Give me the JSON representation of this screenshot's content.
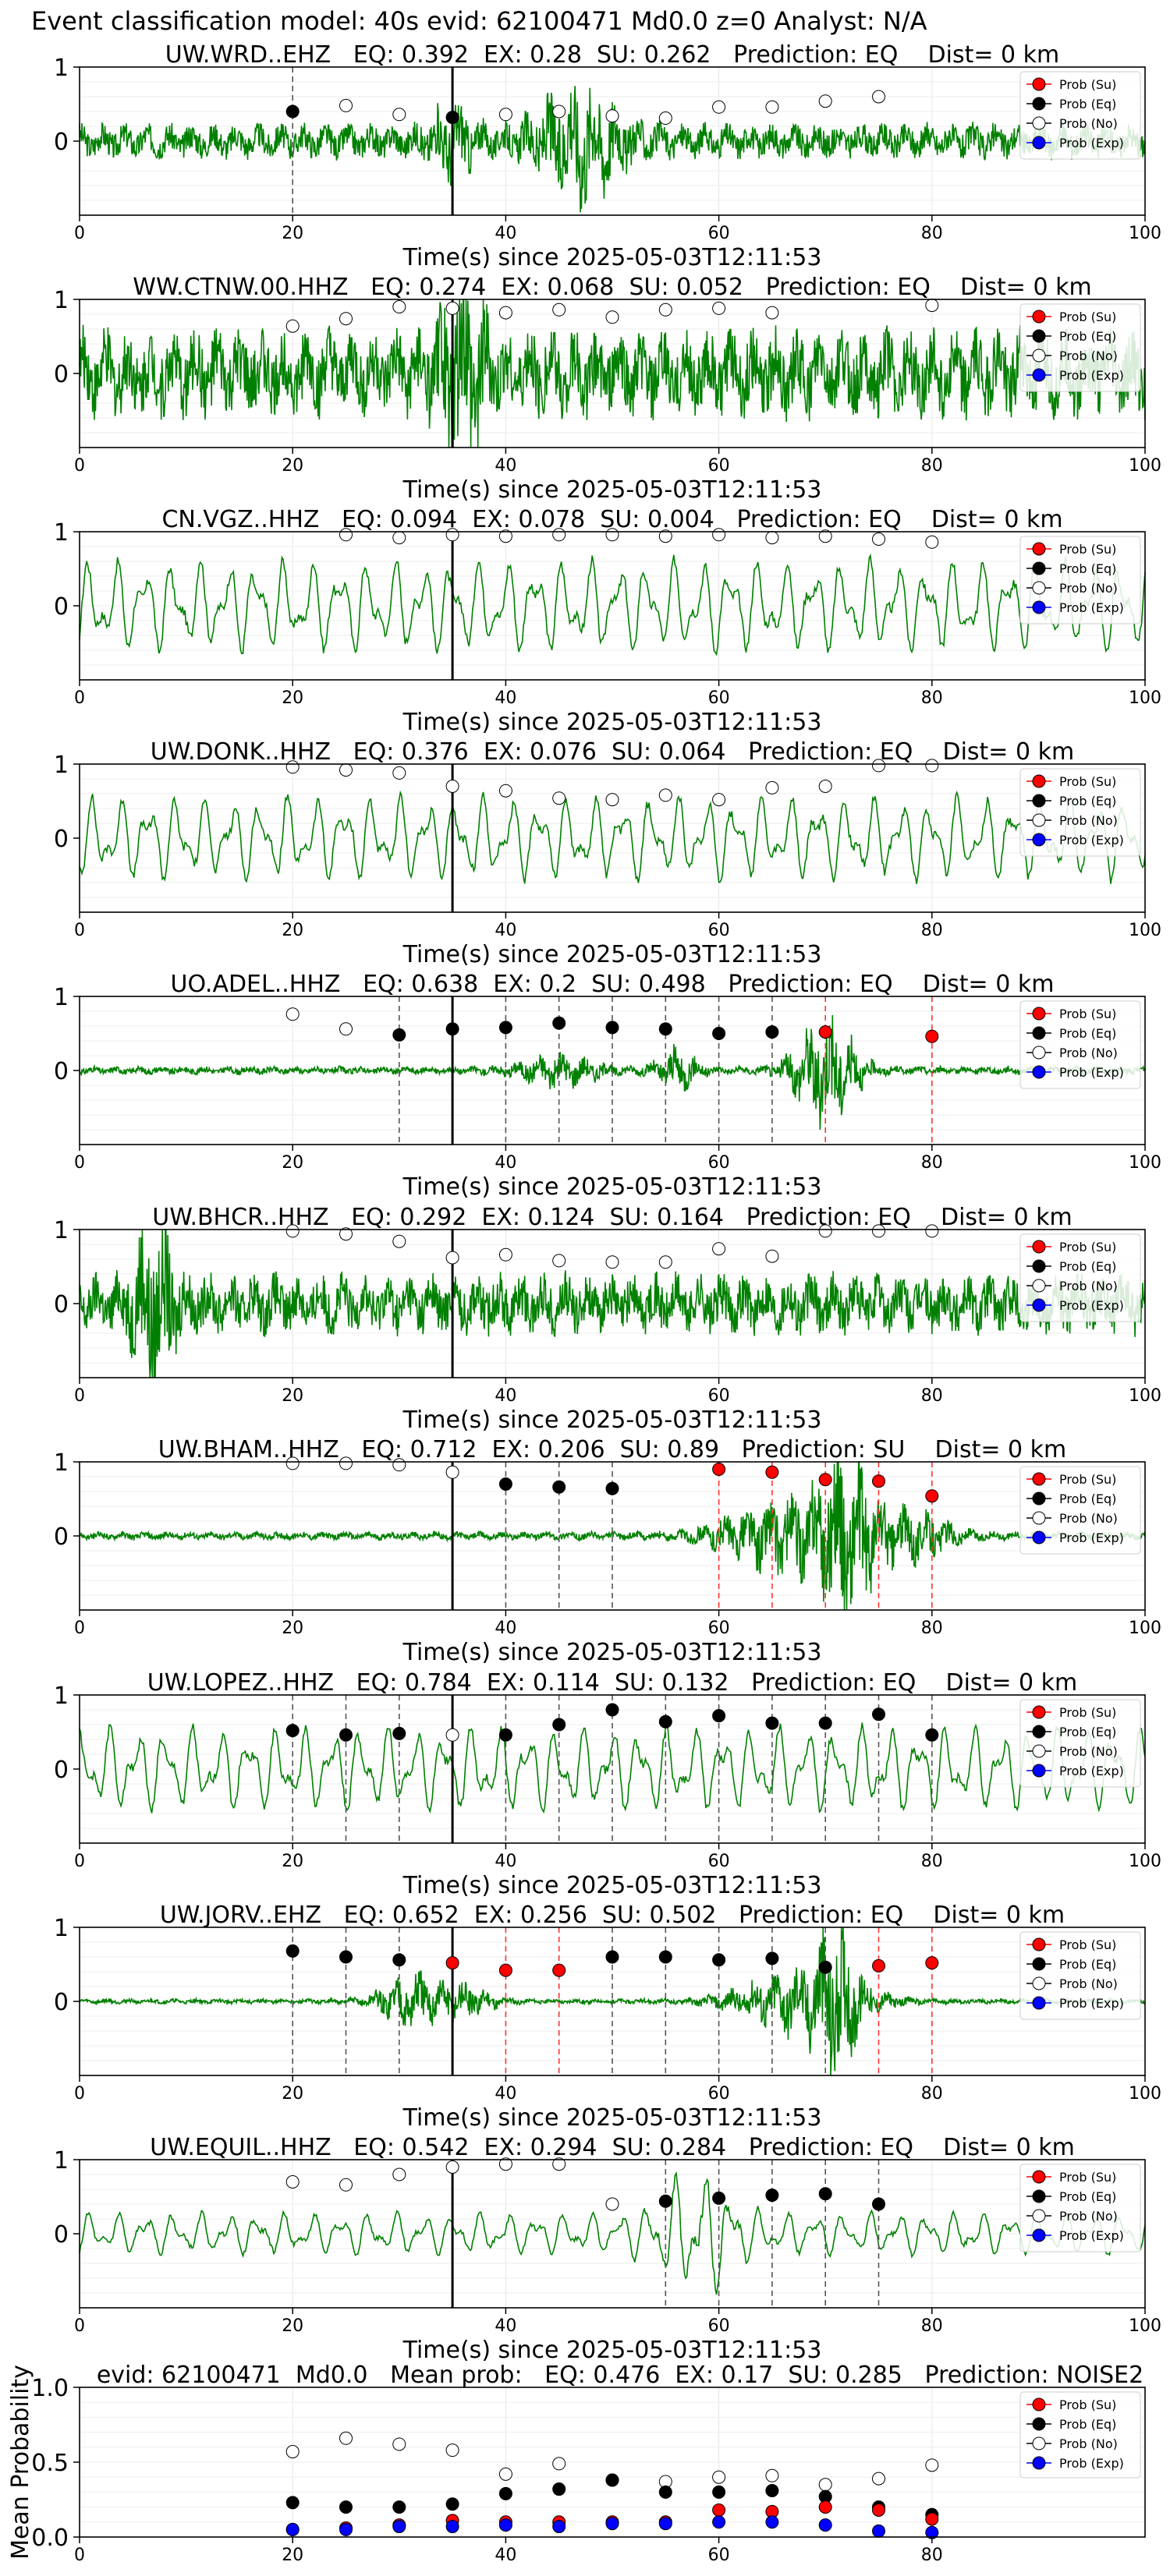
{
  "suptitle": "Event classification model: 40s evid: 62100471 Md0.0 z=0 Analyst: N/A",
  "colors": {
    "trace": "#008000",
    "su": "#ff0000",
    "eq": "#000000",
    "no": "#ffffff",
    "exp": "#0000ff",
    "pick_line": "#000000",
    "eq_window_line": "#555555",
    "su_window_line": "#ff3333"
  },
  "legend_labels": [
    "Prob (Su)",
    "Prob (Eq)",
    "Prob (No)",
    "Prob (Exp)"
  ],
  "chart_data": [
    {
      "type": "line",
      "title": "UW.WRD..EHZ   EQ: 0.392  EX: 0.28  SU: 0.262   Prediction: EQ    Dist= 0 km",
      "xlabel": "Time(s) since 2025-05-03T12:11:53",
      "ylabel": "",
      "xlim": [
        0,
        100
      ],
      "ylim": [
        -1,
        1
      ],
      "xticks": [
        0,
        20,
        40,
        60,
        80,
        100
      ],
      "yticks": [
        0,
        1
      ],
      "grid": true,
      "legend_position": "top-right",
      "pick_time": 35,
      "waveform": {
        "style": "noisy",
        "amplitude": 0.22,
        "bursts": [
          {
            "t": 47,
            "amp": 0.65,
            "w": 4
          },
          {
            "t": 35,
            "amp": 0.35,
            "w": 2
          }
        ]
      },
      "series": [
        {
          "name": "Prob (Eq)",
          "x": [
            20,
            35
          ],
          "values": [
            0.4,
            0.32
          ]
        },
        {
          "name": "Prob (No)",
          "x": [
            25,
            30,
            40,
            45,
            50,
            55,
            60,
            65,
            70,
            75
          ],
          "values": [
            0.48,
            0.36,
            0.36,
            0.4,
            0.34,
            0.31,
            0.46,
            0.46,
            0.54,
            0.6
          ]
        }
      ],
      "window_lines": {
        "eq": [
          20
        ],
        "su": []
      }
    },
    {
      "type": "line",
      "title": "WW.CTNW.00.HHZ   EQ: 0.274  EX: 0.068  SU: 0.052   Prediction: EQ    Dist= 0 km",
      "xlabel": "Time(s) since 2025-05-03T12:11:53",
      "ylabel": "",
      "xlim": [
        0,
        100
      ],
      "ylim": [
        -1,
        1
      ],
      "xticks": [
        0,
        20,
        40,
        60,
        80,
        100
      ],
      "yticks": [
        0,
        1
      ],
      "grid": true,
      "legend_position": "top-right",
      "pick_time": 35,
      "waveform": {
        "style": "noisy",
        "amplitude": 0.55,
        "bursts": [
          {
            "t": 36,
            "amp": 0.9,
            "w": 2
          }
        ]
      },
      "series": [
        {
          "name": "Prob (No)",
          "x": [
            20,
            25,
            30,
            35,
            40,
            45,
            50,
            55,
            60,
            65,
            80
          ],
          "values": [
            0.64,
            0.74,
            0.9,
            0.88,
            0.82,
            0.86,
            0.76,
            0.86,
            0.88,
            0.82,
            0.92
          ]
        }
      ],
      "window_lines": {
        "eq": [],
        "su": []
      }
    },
    {
      "type": "line",
      "title": "CN.VGZ..HHZ   EQ: 0.094  EX: 0.078  SU: 0.004   Prediction: EQ    Dist= 0 km",
      "xlabel": "Time(s) since 2025-05-03T12:11:53",
      "ylabel": "",
      "xlim": [
        0,
        100
      ],
      "ylim": [
        -1,
        1
      ],
      "xticks": [
        0,
        20,
        40,
        60,
        80,
        100
      ],
      "yticks": [
        0,
        1
      ],
      "grid": true,
      "legend_position": "top-right",
      "pick_time": 35,
      "waveform": {
        "style": "smooth",
        "amplitude": 0.55,
        "bursts": []
      },
      "series": [
        {
          "name": "Prob (No)",
          "x": [
            25,
            30,
            35,
            40,
            45,
            50,
            55,
            60,
            65,
            70,
            75,
            80
          ],
          "values": [
            0.96,
            0.92,
            0.96,
            0.94,
            0.96,
            0.96,
            0.94,
            0.96,
            0.92,
            0.94,
            0.9,
            0.86
          ]
        }
      ],
      "window_lines": {
        "eq": [],
        "su": []
      }
    },
    {
      "type": "line",
      "title": "UW.DONK..HHZ   EQ: 0.376  EX: 0.076  SU: 0.064   Prediction: EQ    Dist= 0 km",
      "xlabel": "Time(s) since 2025-05-03T12:11:53",
      "ylabel": "",
      "xlim": [
        0,
        100
      ],
      "ylim": [
        -1,
        1
      ],
      "xticks": [
        0,
        20,
        40,
        60,
        80,
        100
      ],
      "yticks": [
        0,
        1
      ],
      "grid": true,
      "legend_position": "top-right",
      "pick_time": 35,
      "waveform": {
        "style": "smooth",
        "amplitude": 0.5,
        "bursts": []
      },
      "series": [
        {
          "name": "Prob (No)",
          "x": [
            20,
            25,
            30,
            35,
            40,
            45,
            50,
            55,
            60,
            65,
            70,
            75,
            80
          ],
          "values": [
            0.96,
            0.92,
            0.88,
            0.7,
            0.64,
            0.54,
            0.52,
            0.58,
            0.52,
            0.68,
            0.7,
            0.98,
            0.98
          ]
        }
      ],
      "window_lines": {
        "eq": [],
        "su": []
      }
    },
    {
      "type": "line",
      "title": "UO.ADEL..HHZ   EQ: 0.638  EX: 0.2  SU: 0.498   Prediction: EQ    Dist= 0 km",
      "xlabel": "Time(s) since 2025-05-03T12:11:53",
      "ylabel": "",
      "xlim": [
        0,
        100
      ],
      "ylim": [
        -1,
        1
      ],
      "xticks": [
        0,
        20,
        40,
        60,
        80,
        100
      ],
      "yticks": [
        0,
        1
      ],
      "grid": true,
      "legend_position": "top-right",
      "pick_time": 35,
      "waveform": {
        "style": "noisy",
        "amplitude": 0.05,
        "bursts": [
          {
            "t": 45,
            "amp": 0.18,
            "w": 4
          },
          {
            "t": 56,
            "amp": 0.25,
            "w": 2
          },
          {
            "t": 70,
            "amp": 0.7,
            "w": 3
          }
        ]
      },
      "series": [
        {
          "name": "Prob (No)",
          "x": [
            20,
            25
          ],
          "values": [
            0.76,
            0.56
          ]
        },
        {
          "name": "Prob (Eq)",
          "x": [
            30,
            35,
            40,
            45,
            50,
            55,
            60,
            65
          ],
          "values": [
            0.48,
            0.56,
            0.58,
            0.64,
            0.58,
            0.56,
            0.5,
            0.52
          ]
        },
        {
          "name": "Prob (Su)",
          "x": [
            70,
            80
          ],
          "values": [
            0.52,
            0.46
          ]
        }
      ],
      "window_lines": {
        "eq": [
          30,
          40,
          45,
          50,
          55,
          60,
          65
        ],
        "su": [
          70,
          80
        ]
      }
    },
    {
      "type": "line",
      "title": "UW.BHCR..HHZ   EQ: 0.292  EX: 0.124  SU: 0.164   Prediction: EQ    Dist= 0 km",
      "xlabel": "Time(s) since 2025-05-03T12:11:53",
      "ylabel": "",
      "xlim": [
        0,
        100
      ],
      "ylim": [
        -1,
        1
      ],
      "xticks": [
        0,
        20,
        40,
        60,
        80,
        100
      ],
      "yticks": [
        0,
        1
      ],
      "grid": true,
      "legend_position": "top-right",
      "pick_time": 35,
      "waveform": {
        "style": "noisy",
        "amplitude": 0.38,
        "bursts": [
          {
            "t": 7,
            "amp": 0.9,
            "w": 2
          }
        ]
      },
      "series": [
        {
          "name": "Prob (No)",
          "x": [
            20,
            25,
            30,
            35,
            40,
            45,
            50,
            55,
            60,
            65,
            70,
            75,
            80
          ],
          "values": [
            0.98,
            0.94,
            0.84,
            0.62,
            0.66,
            0.58,
            0.56,
            0.56,
            0.74,
            0.64,
            0.98,
            0.98,
            0.98
          ]
        }
      ],
      "window_lines": {
        "eq": [],
        "su": []
      }
    },
    {
      "type": "line",
      "title": "UW.BHAM..HHZ   EQ: 0.712  EX: 0.206  SU: 0.89   Prediction: SU    Dist= 0 km",
      "xlabel": "Time(s) since 2025-05-03T12:11:53",
      "ylabel": "",
      "xlim": [
        0,
        100
      ],
      "ylim": [
        -1,
        1
      ],
      "xticks": [
        0,
        20,
        40,
        60,
        80,
        100
      ],
      "yticks": [
        0,
        1
      ],
      "grid": true,
      "legend_position": "top-right",
      "pick_time": 35,
      "waveform": {
        "style": "noisy",
        "amplitude": 0.05,
        "bursts": [
          {
            "t": 66,
            "amp": 0.45,
            "w": 6
          },
          {
            "t": 72,
            "amp": 0.8,
            "w": 3
          },
          {
            "t": 78,
            "amp": 0.3,
            "w": 4
          }
        ]
      },
      "series": [
        {
          "name": "Prob (No)",
          "x": [
            20,
            25,
            30,
            35
          ],
          "values": [
            0.98,
            0.98,
            0.96,
            0.86
          ]
        },
        {
          "name": "Prob (Eq)",
          "x": [
            40,
            45,
            50
          ],
          "values": [
            0.7,
            0.66,
            0.64
          ]
        },
        {
          "name": "Prob (Su)",
          "x": [
            60,
            65,
            70,
            75,
            80
          ],
          "values": [
            0.9,
            0.86,
            0.76,
            0.74,
            0.54
          ]
        }
      ],
      "window_lines": {
        "eq": [
          40,
          45,
          50
        ],
        "su": [
          60,
          65,
          70,
          75,
          80
        ]
      }
    },
    {
      "type": "line",
      "title": "UW.LOPEZ..HHZ   EQ: 0.784  EX: 0.114  SU: 0.132   Prediction: EQ    Dist= 0 km",
      "xlabel": "Time(s) since 2025-05-03T12:11:53",
      "ylabel": "",
      "xlim": [
        0,
        100
      ],
      "ylim": [
        -1,
        1
      ],
      "xticks": [
        0,
        20,
        40,
        60,
        80,
        100
      ],
      "yticks": [
        0,
        1
      ],
      "grid": true,
      "legend_position": "top-right",
      "pick_time": 35,
      "waveform": {
        "style": "smooth",
        "amplitude": 0.5,
        "bursts": []
      },
      "series": [
        {
          "name": "Prob (Eq)",
          "x": [
            20,
            25,
            30,
            40,
            45,
            50,
            55,
            60,
            65,
            70,
            75,
            80
          ],
          "values": [
            0.52,
            0.46,
            0.48,
            0.46,
            0.6,
            0.8,
            0.64,
            0.72,
            0.62,
            0.62,
            0.74,
            0.46
          ]
        },
        {
          "name": "Prob (No)",
          "x": [
            35
          ],
          "values": [
            0.46
          ]
        }
      ],
      "window_lines": {
        "eq": [
          20,
          25,
          30,
          40,
          45,
          50,
          55,
          60,
          65,
          70,
          75,
          80
        ],
        "su": []
      }
    },
    {
      "type": "line",
      "title": "UW.JORV..EHZ   EQ: 0.652  EX: 0.256  SU: 0.502   Prediction: EQ    Dist= 0 km",
      "xlabel": "Time(s) since 2025-05-03T12:11:53",
      "ylabel": "",
      "xlim": [
        0,
        100
      ],
      "ylim": [
        -1,
        1
      ],
      "xticks": [
        0,
        20,
        40,
        60,
        80,
        100
      ],
      "yticks": [
        0,
        1
      ],
      "grid": true,
      "legend_position": "top-right",
      "pick_time": 35,
      "waveform": {
        "style": "noisy",
        "amplitude": 0.03,
        "bursts": [
          {
            "t": 31,
            "amp": 0.35,
            "w": 3
          },
          {
            "t": 36,
            "amp": 0.2,
            "w": 3
          },
          {
            "t": 68,
            "amp": 0.45,
            "w": 6
          },
          {
            "t": 71,
            "amp": 0.7,
            "w": 2
          }
        ]
      },
      "series": [
        {
          "name": "Prob (Eq)",
          "x": [
            20,
            25,
            30,
            50,
            55,
            60,
            65,
            70
          ],
          "values": [
            0.68,
            0.6,
            0.56,
            0.6,
            0.6,
            0.56,
            0.58,
            0.46
          ]
        },
        {
          "name": "Prob (Su)",
          "x": [
            35,
            40,
            45,
            75,
            80
          ],
          "values": [
            0.52,
            0.42,
            0.42,
            0.48,
            0.52
          ]
        }
      ],
      "window_lines": {
        "eq": [
          20,
          25,
          30,
          50,
          55,
          60,
          65,
          70
        ],
        "su": [
          40,
          45,
          75,
          80
        ]
      }
    },
    {
      "type": "line",
      "title": "UW.EQUIL..HHZ   EQ: 0.542  EX: 0.294  SU: 0.284   Prediction: EQ    Dist= 0 km",
      "xlabel": "Time(s) since 2025-05-03T12:11:53",
      "ylabel": "",
      "xlim": [
        0,
        100
      ],
      "ylim": [
        -1,
        1
      ],
      "xticks": [
        0,
        20,
        40,
        60,
        80,
        100
      ],
      "yticks": [
        0,
        1
      ],
      "grid": true,
      "legend_position": "top-right",
      "pick_time": 35,
      "waveform": {
        "style": "smooth",
        "amplitude": 0.25,
        "bursts": [
          {
            "t": 58,
            "amp": 0.55,
            "w": 4
          }
        ]
      },
      "series": [
        {
          "name": "Prob (No)",
          "x": [
            20,
            25,
            30,
            35,
            40,
            45,
            50
          ],
          "values": [
            0.7,
            0.66,
            0.8,
            0.9,
            0.94,
            0.94,
            0.4
          ]
        },
        {
          "name": "Prob (Eq)",
          "x": [
            55,
            60,
            65,
            70,
            75
          ],
          "values": [
            0.44,
            0.48,
            0.52,
            0.54,
            0.4
          ]
        }
      ],
      "window_lines": {
        "eq": [
          55,
          60,
          65,
          70,
          75
        ],
        "su": []
      }
    },
    {
      "type": "scatter",
      "title": "evid: 62100471  Md0.0   Mean prob:   EQ: 0.476  EX: 0.17  SU: 0.285   Prediction: NOISE2",
      "xlabel": "",
      "ylabel": "Mean Probability",
      "xlim": [
        0,
        100
      ],
      "ylim": [
        0,
        1
      ],
      "xticks": [
        0,
        20,
        40,
        60,
        80
      ],
      "yticks": [
        0.0,
        0.5,
        1.0
      ],
      "grid": true,
      "legend_position": "top-right",
      "series": [
        {
          "name": "Prob (No)",
          "x": [
            20,
            25,
            30,
            35,
            40,
            45,
            50,
            55,
            60,
            65,
            70,
            75,
            80
          ],
          "values": [
            0.57,
            0.66,
            0.62,
            0.58,
            0.42,
            0.49,
            0.38,
            0.37,
            0.4,
            0.41,
            0.35,
            0.39,
            0.48
          ]
        },
        {
          "name": "Prob (Eq)",
          "x": [
            20,
            25,
            30,
            35,
            40,
            45,
            50,
            55,
            60,
            65,
            70,
            75,
            80
          ],
          "values": [
            0.23,
            0.2,
            0.2,
            0.22,
            0.29,
            0.32,
            0.38,
            0.3,
            0.3,
            0.31,
            0.27,
            0.2,
            0.15
          ]
        },
        {
          "name": "Prob (Su)",
          "x": [
            20,
            25,
            30,
            35,
            40,
            45,
            50,
            55,
            60,
            65,
            70,
            75,
            80
          ],
          "values": [
            0.05,
            0.06,
            0.08,
            0.11,
            0.1,
            0.1,
            0.1,
            0.1,
            0.18,
            0.17,
            0.2,
            0.18,
            0.12
          ]
        },
        {
          "name": "Prob (Exp)",
          "x": [
            20,
            25,
            30,
            35,
            40,
            45,
            50,
            55,
            60,
            65,
            70,
            75,
            80
          ],
          "values": [
            0.05,
            0.05,
            0.07,
            0.07,
            0.08,
            0.07,
            0.09,
            0.09,
            0.1,
            0.1,
            0.08,
            0.04,
            0.03
          ]
        }
      ],
      "window_lines": {
        "eq": [],
        "su": []
      }
    }
  ]
}
